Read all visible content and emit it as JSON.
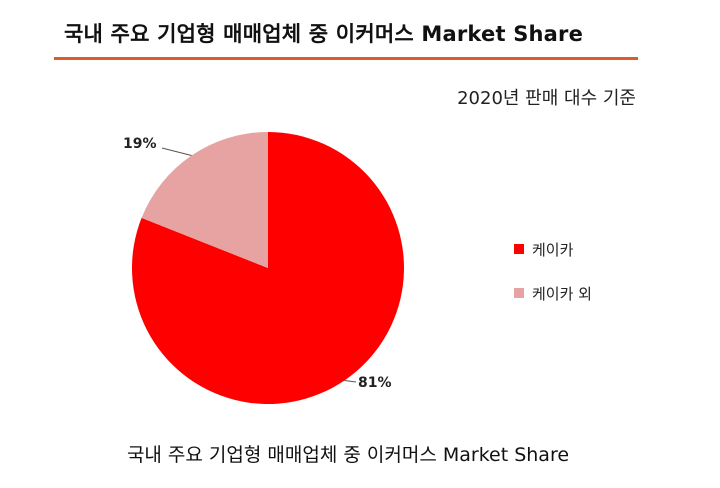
{
  "header": {
    "title": "국내 주요 기업형 매매업체 중 이커머스 Market Share",
    "subtitle": "2020년 판매 대수 기준"
  },
  "footer": {
    "caption": "국내 주요 기업형 매매업체 중 이커머스 Market Share"
  },
  "colors": {
    "accent_rule": "#e25a2b"
  },
  "chart_data": {
    "type": "pie",
    "categories": [
      "케이카",
      "케이카 외"
    ],
    "values": [
      81,
      19
    ],
    "labels": [
      "81%",
      "19%"
    ],
    "colors": [
      "#ff0000",
      "#e7a2a2"
    ],
    "legend": [
      "케이카",
      "케이카 외"
    ],
    "legend_position": "right"
  }
}
